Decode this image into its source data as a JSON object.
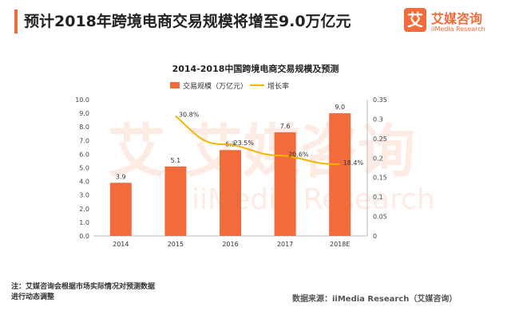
{
  "header": {
    "title": "预计2018年跨境电商交易规模将增至9.0万亿元"
  },
  "logo": {
    "mark": "艾",
    "name": "艾媒咨询",
    "en": "iiMedia Research"
  },
  "watermark": {
    "cn": "艾媒咨询",
    "en": "iiMedia Research"
  },
  "chart_data": {
    "type": "bar+line",
    "title": "2014-2018中国跨境电商交易规模及预测",
    "categories": [
      "2014",
      "2015",
      "2016",
      "2017",
      "2018E"
    ],
    "series": [
      {
        "name": "交易规模（万亿元）",
        "type": "bar",
        "axis": "left",
        "color": "#f26b3a",
        "values": [
          3.9,
          5.1,
          6.3,
          7.6,
          9.0
        ],
        "labels": [
          "3.9",
          "5.1",
          "6.3",
          "7.6",
          "9.0"
        ]
      },
      {
        "name": "增长率",
        "type": "line",
        "axis": "right",
        "color": "#f5b400",
        "values": [
          null,
          0.308,
          0.235,
          0.206,
          0.184
        ],
        "labels": [
          "",
          "30.8%",
          "23.5%",
          "20.6%",
          "18.4%"
        ]
      }
    ],
    "ylim": [
      0,
      10
    ],
    "yticks": [
      "0.0",
      "1.0",
      "2.0",
      "3.0",
      "4.0",
      "5.0",
      "6.0",
      "7.0",
      "8.0",
      "9.0",
      "10.0"
    ],
    "y2lim": [
      0,
      0.35
    ],
    "y2ticks": [
      "0",
      "0.05",
      "0.1",
      "0.15",
      "0.2",
      "0.25",
      "0.3",
      "0.35"
    ],
    "legend": "top",
    "grid": false
  },
  "footer": {
    "note_line1": "注：艾媒咨询会根据市场实际情况对预测数据",
    "note_line2": "进行动态调整",
    "source": "数据来源：iiMedia Research（艾媒咨询）"
  }
}
